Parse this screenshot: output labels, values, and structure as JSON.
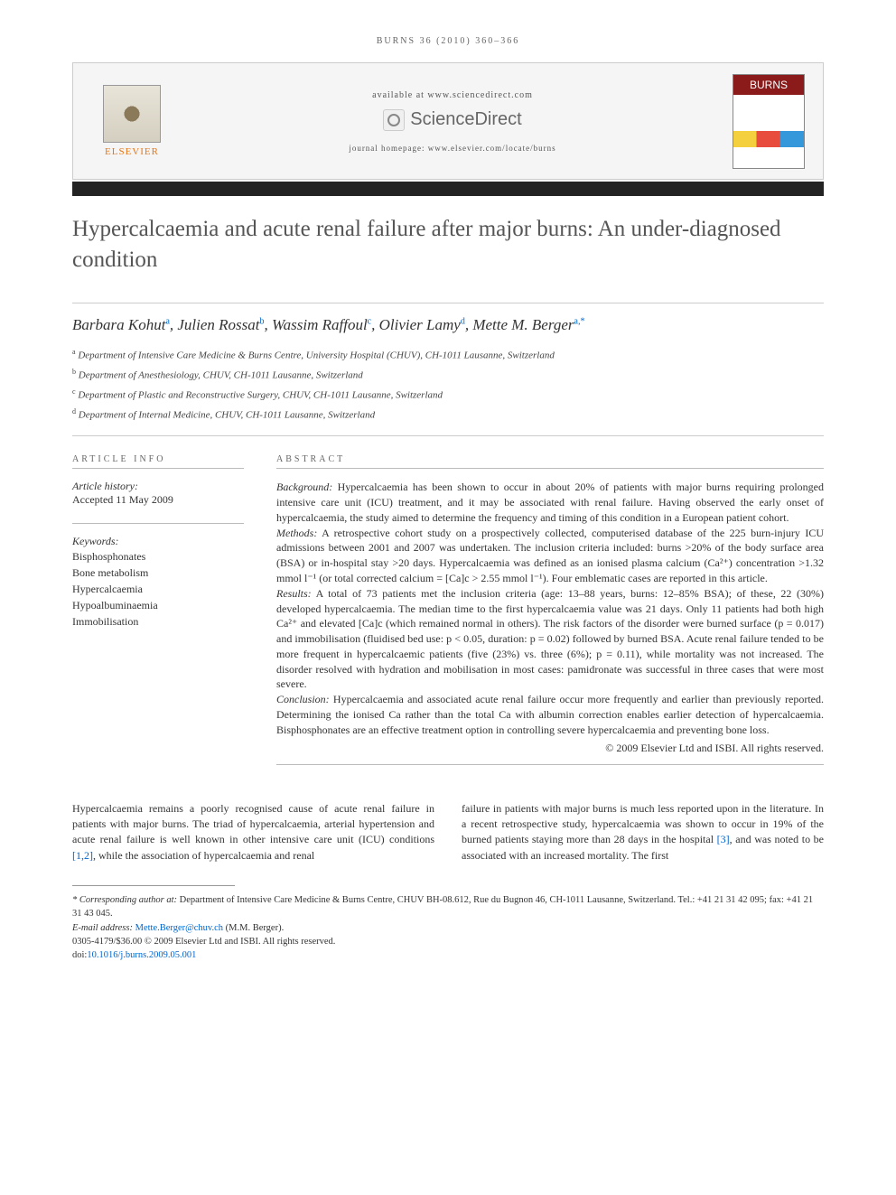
{
  "running_header": "BURNS 36 (2010) 360–366",
  "header": {
    "available_text": "available at www.sciencedirect.com",
    "brand": "ScienceDirect",
    "homepage_text": "journal homepage: www.elsevier.com/locate/burns",
    "publisher_name": "ELSEVIER",
    "journal_cover_title": "BURNS"
  },
  "title": "Hypercalcaemia and acute renal failure after major burns: An under-diagnosed condition",
  "authors_html": "Barbara Kohut",
  "authors": [
    {
      "name": "Barbara Kohut",
      "sup": "a"
    },
    {
      "name": "Julien Rossat",
      "sup": "b"
    },
    {
      "name": "Wassim Raffoul",
      "sup": "c"
    },
    {
      "name": "Olivier Lamy",
      "sup": "d"
    },
    {
      "name": "Mette M. Berger",
      "sup": "a,*"
    }
  ],
  "affiliations": [
    {
      "sup": "a",
      "text": "Department of Intensive Care Medicine & Burns Centre, University Hospital (CHUV), CH-1011 Lausanne, Switzerland"
    },
    {
      "sup": "b",
      "text": "Department of Anesthesiology, CHUV, CH-1011 Lausanne, Switzerland"
    },
    {
      "sup": "c",
      "text": "Department of Plastic and Reconstructive Surgery, CHUV, CH-1011 Lausanne, Switzerland"
    },
    {
      "sup": "d",
      "text": "Department of Internal Medicine, CHUV, CH-1011 Lausanne, Switzerland"
    }
  ],
  "article_info": {
    "section_label": "ARTICLE INFO",
    "history_label": "Article history:",
    "history_value": "Accepted 11 May 2009",
    "keywords_label": "Keywords:",
    "keywords": [
      "Bisphosphonates",
      "Bone metabolism",
      "Hypercalcaemia",
      "Hypoalbuminaemia",
      "Immobilisation"
    ]
  },
  "abstract": {
    "section_label": "ABSTRACT",
    "background_label": "Background:",
    "background": "Hypercalcaemia has been shown to occur in about 20% of patients with major burns requiring prolonged intensive care unit (ICU) treatment, and it may be associated with renal failure. Having observed the early onset of hypercalcaemia, the study aimed to determine the frequency and timing of this condition in a European patient cohort.",
    "methods_label": "Methods:",
    "methods": "A retrospective cohort study on a prospectively collected, computerised database of the 225 burn-injury ICU admissions between 2001 and 2007 was undertaken. The inclusion criteria included: burns >20% of the body surface area (BSA) or in-hospital stay >20 days. Hypercalcaemia was defined as an ionised plasma calcium (Ca²⁺) concentration >1.32 mmol l⁻¹ (or total corrected calcium = [Ca]c > 2.55 mmol l⁻¹). Four emblematic cases are reported in this article.",
    "results_label": "Results:",
    "results": "A total of 73 patients met the inclusion criteria (age: 13–88 years, burns: 12–85% BSA); of these, 22 (30%) developed hypercalcaemia. The median time to the first hypercalcaemia value was 21 days. Only 11 patients had both high Ca²⁺ and elevated [Ca]c (which remained normal in others). The risk factors of the disorder were burned surface (p = 0.017) and immobilisation (fluidised bed use: p < 0.05, duration: p = 0.02) followed by burned BSA. Acute renal failure tended to be more frequent in hypercalcaemic patients (five (23%) vs. three (6%); p = 0.11), while mortality was not increased. The disorder resolved with hydration and mobilisation in most cases: pamidronate was successful in three cases that were most severe.",
    "conclusion_label": "Conclusion:",
    "conclusion": "Hypercalcaemia and associated acute renal failure occur more frequently and earlier than previously reported. Determining the ionised Ca rather than the total Ca with albumin correction enables earlier detection of hypercalcaemia. Bisphosphonates are an effective treatment option in controlling severe hypercalcaemia and preventing bone loss.",
    "copyright": "© 2009 Elsevier Ltd and ISBI. All rights reserved."
  },
  "body": {
    "col1": "Hypercalcaemia remains a poorly recognised cause of acute renal failure in patients with major burns. The triad of hypercalcaemia, arterial hypertension and acute renal failure is well known in other intensive care unit (ICU) conditions ",
    "col1_ref": "[1,2]",
    "col1_tail": ", while the association of hypercalcaemia and renal",
    "col2_a": "failure in patients with major burns is much less reported upon in the literature. In a recent retrospective study, hypercalcaemia was shown to occur in 19% of the burned patients staying more than 28 days in the hospital ",
    "col2_ref": "[3]",
    "col2_b": ", and was noted to be associated with an increased mortality. The first"
  },
  "footnotes": {
    "corr_label": "* Corresponding author at:",
    "corr_text": " Department of Intensive Care Medicine & Burns Centre, CHUV BH-08.612, Rue du Bugnon 46, CH-1011 Lausanne, Switzerland. Tel.: +41 21 31 42 095; fax: +41 21 31 43 045.",
    "email_label": "E-mail address: ",
    "email": "Mette.Berger@chuv.ch",
    "email_tail": " (M.M. Berger).",
    "issn_line": "0305-4179/$36.00 © 2009 Elsevier Ltd and ISBI. All rights reserved.",
    "doi_label": "doi:",
    "doi": "10.1016/j.burns.2009.05.001"
  },
  "colors": {
    "title_color": "#555555",
    "link_color": "#0066cc",
    "elsevier_orange": "#e67817",
    "burns_red": "#8b1a1a",
    "bar_color": "#232323",
    "rule_color": "#cccccc"
  },
  "typography": {
    "title_fontsize_pt": 19,
    "body_fontsize_pt": 9,
    "abstract_fontsize_pt": 9,
    "authors_fontsize_pt": 13
  }
}
